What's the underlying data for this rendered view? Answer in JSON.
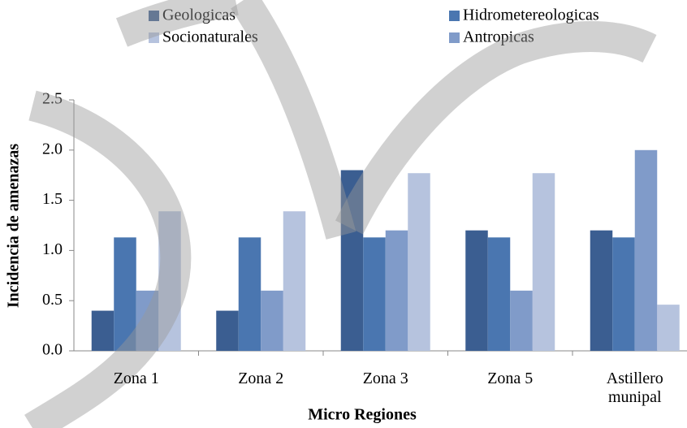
{
  "chart_data": {
    "type": "bar",
    "x_label": "Micro Regiones",
    "y_label": "Incidencia de amenazas",
    "categories": [
      "Zona 1",
      "Zona 2",
      "Zona 3",
      "Zona 5",
      "Astillero\nmunipal"
    ],
    "series": [
      {
        "name": "Geologicas",
        "color": "#3b5e91",
        "values": [
          0.4,
          0.4,
          1.8,
          1.2,
          1.2
        ]
      },
      {
        "name": "Hidrometereologicas",
        "color": "#4a76b0",
        "values": [
          1.13,
          1.13,
          1.13,
          1.13,
          1.13
        ]
      },
      {
        "name": "Socionaturales",
        "color": "#b6c3de",
        "values": [
          1.39,
          1.39,
          1.77,
          1.77,
          0.46
        ]
      },
      {
        "name": "Antropicas",
        "color": "#809bc9",
        "values": [
          0.6,
          0.6,
          1.2,
          0.6,
          2.0
        ]
      }
    ],
    "ylim": [
      0,
      2.5
    ],
    "yticks": [
      {
        "value": 0,
        "label": "0.0"
      },
      0.5,
      {
        "value": 1,
        "label": "1.0"
      },
      1.5,
      {
        "value": 2,
        "label": "2.0"
      },
      2.5
    ]
  }
}
